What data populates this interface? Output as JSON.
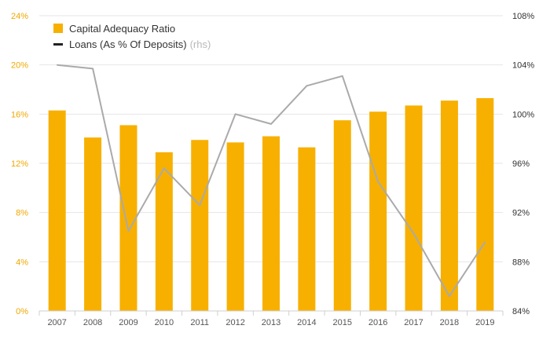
{
  "chart_data": {
    "type": "bar+line",
    "categories": [
      "2007",
      "2008",
      "2009",
      "2010",
      "2011",
      "2012",
      "2013",
      "2014",
      "2015",
      "2016",
      "2017",
      "2018",
      "2019"
    ],
    "series": [
      {
        "name": "Capital Adequacy Ratio",
        "type": "bar",
        "axis": "left",
        "values": [
          16.3,
          14.1,
          15.1,
          12.9,
          13.9,
          13.7,
          14.2,
          13.3,
          15.5,
          16.2,
          16.7,
          17.1,
          17.3
        ]
      },
      {
        "name": "Loans (As % Of Deposits)",
        "type": "line",
        "axis": "right",
        "values": [
          104.0,
          103.7,
          90.5,
          95.6,
          92.6,
          100.0,
          99.2,
          102.3,
          103.1,
          94.5,
          90.3,
          85.2,
          89.6
        ]
      }
    ],
    "legend": {
      "bar_label": "Capital Adequacy Ratio",
      "line_label": "Loans (As % Of Deposits)",
      "line_suffix": "(rhs)"
    },
    "left_axis": {
      "min": 0,
      "max": 24,
      "ticks": [
        0,
        4,
        8,
        12,
        16,
        20,
        24
      ],
      "tick_labels": [
        "0%",
        "4%",
        "8%",
        "12%",
        "16%",
        "20%",
        "24%"
      ]
    },
    "right_axis": {
      "min": 84,
      "max": 108,
      "ticks": [
        84,
        88,
        92,
        96,
        100,
        104,
        108
      ],
      "tick_labels": [
        "84%",
        "88%",
        "92%",
        "96%",
        "100%",
        "104%",
        "108%"
      ]
    },
    "grid": true,
    "legend_position": "top-left",
    "colors": {
      "bar": "#f7b000",
      "line": "#aaaaaa",
      "left_tick": "#f0a800",
      "right_tick": "#333333",
      "grid": "#e6e6e6",
      "x_tick": "#555555"
    }
  }
}
